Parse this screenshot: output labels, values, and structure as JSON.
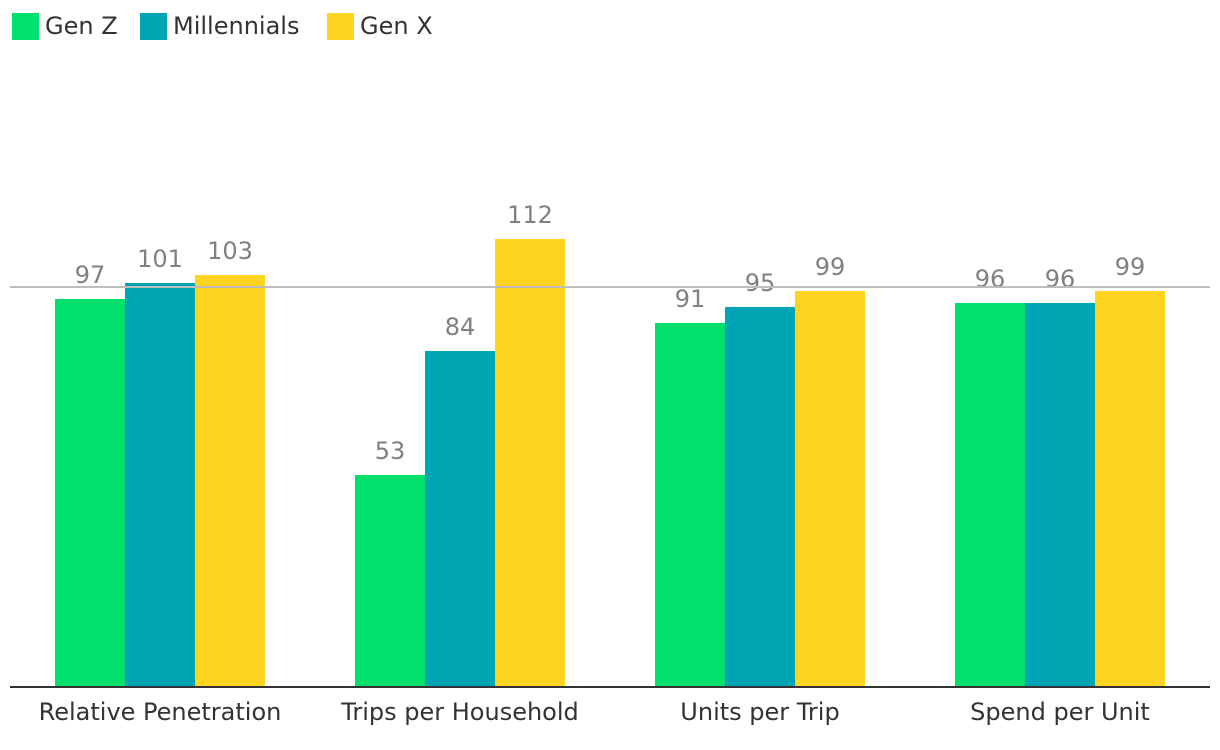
{
  "chart_data": {
    "type": "bar",
    "categories": [
      "Relative Penetration",
      "Trips per Household",
      "Units per Trip",
      "Spend per Unit"
    ],
    "series": [
      {
        "name": "Gen Z",
        "color": "#00e06c",
        "values": [
          97,
          53,
          91,
          96
        ]
      },
      {
        "name": "Millennials",
        "color": "#00a5b5",
        "values": [
          101,
          84,
          95,
          96
        ]
      },
      {
        "name": "Gen X",
        "color": "#fdd520",
        "values": [
          103,
          112,
          99,
          99
        ]
      }
    ],
    "ylim": [
      0,
      125
    ],
    "reference_line": 100,
    "legend_position": "top-left",
    "grid": false
  }
}
